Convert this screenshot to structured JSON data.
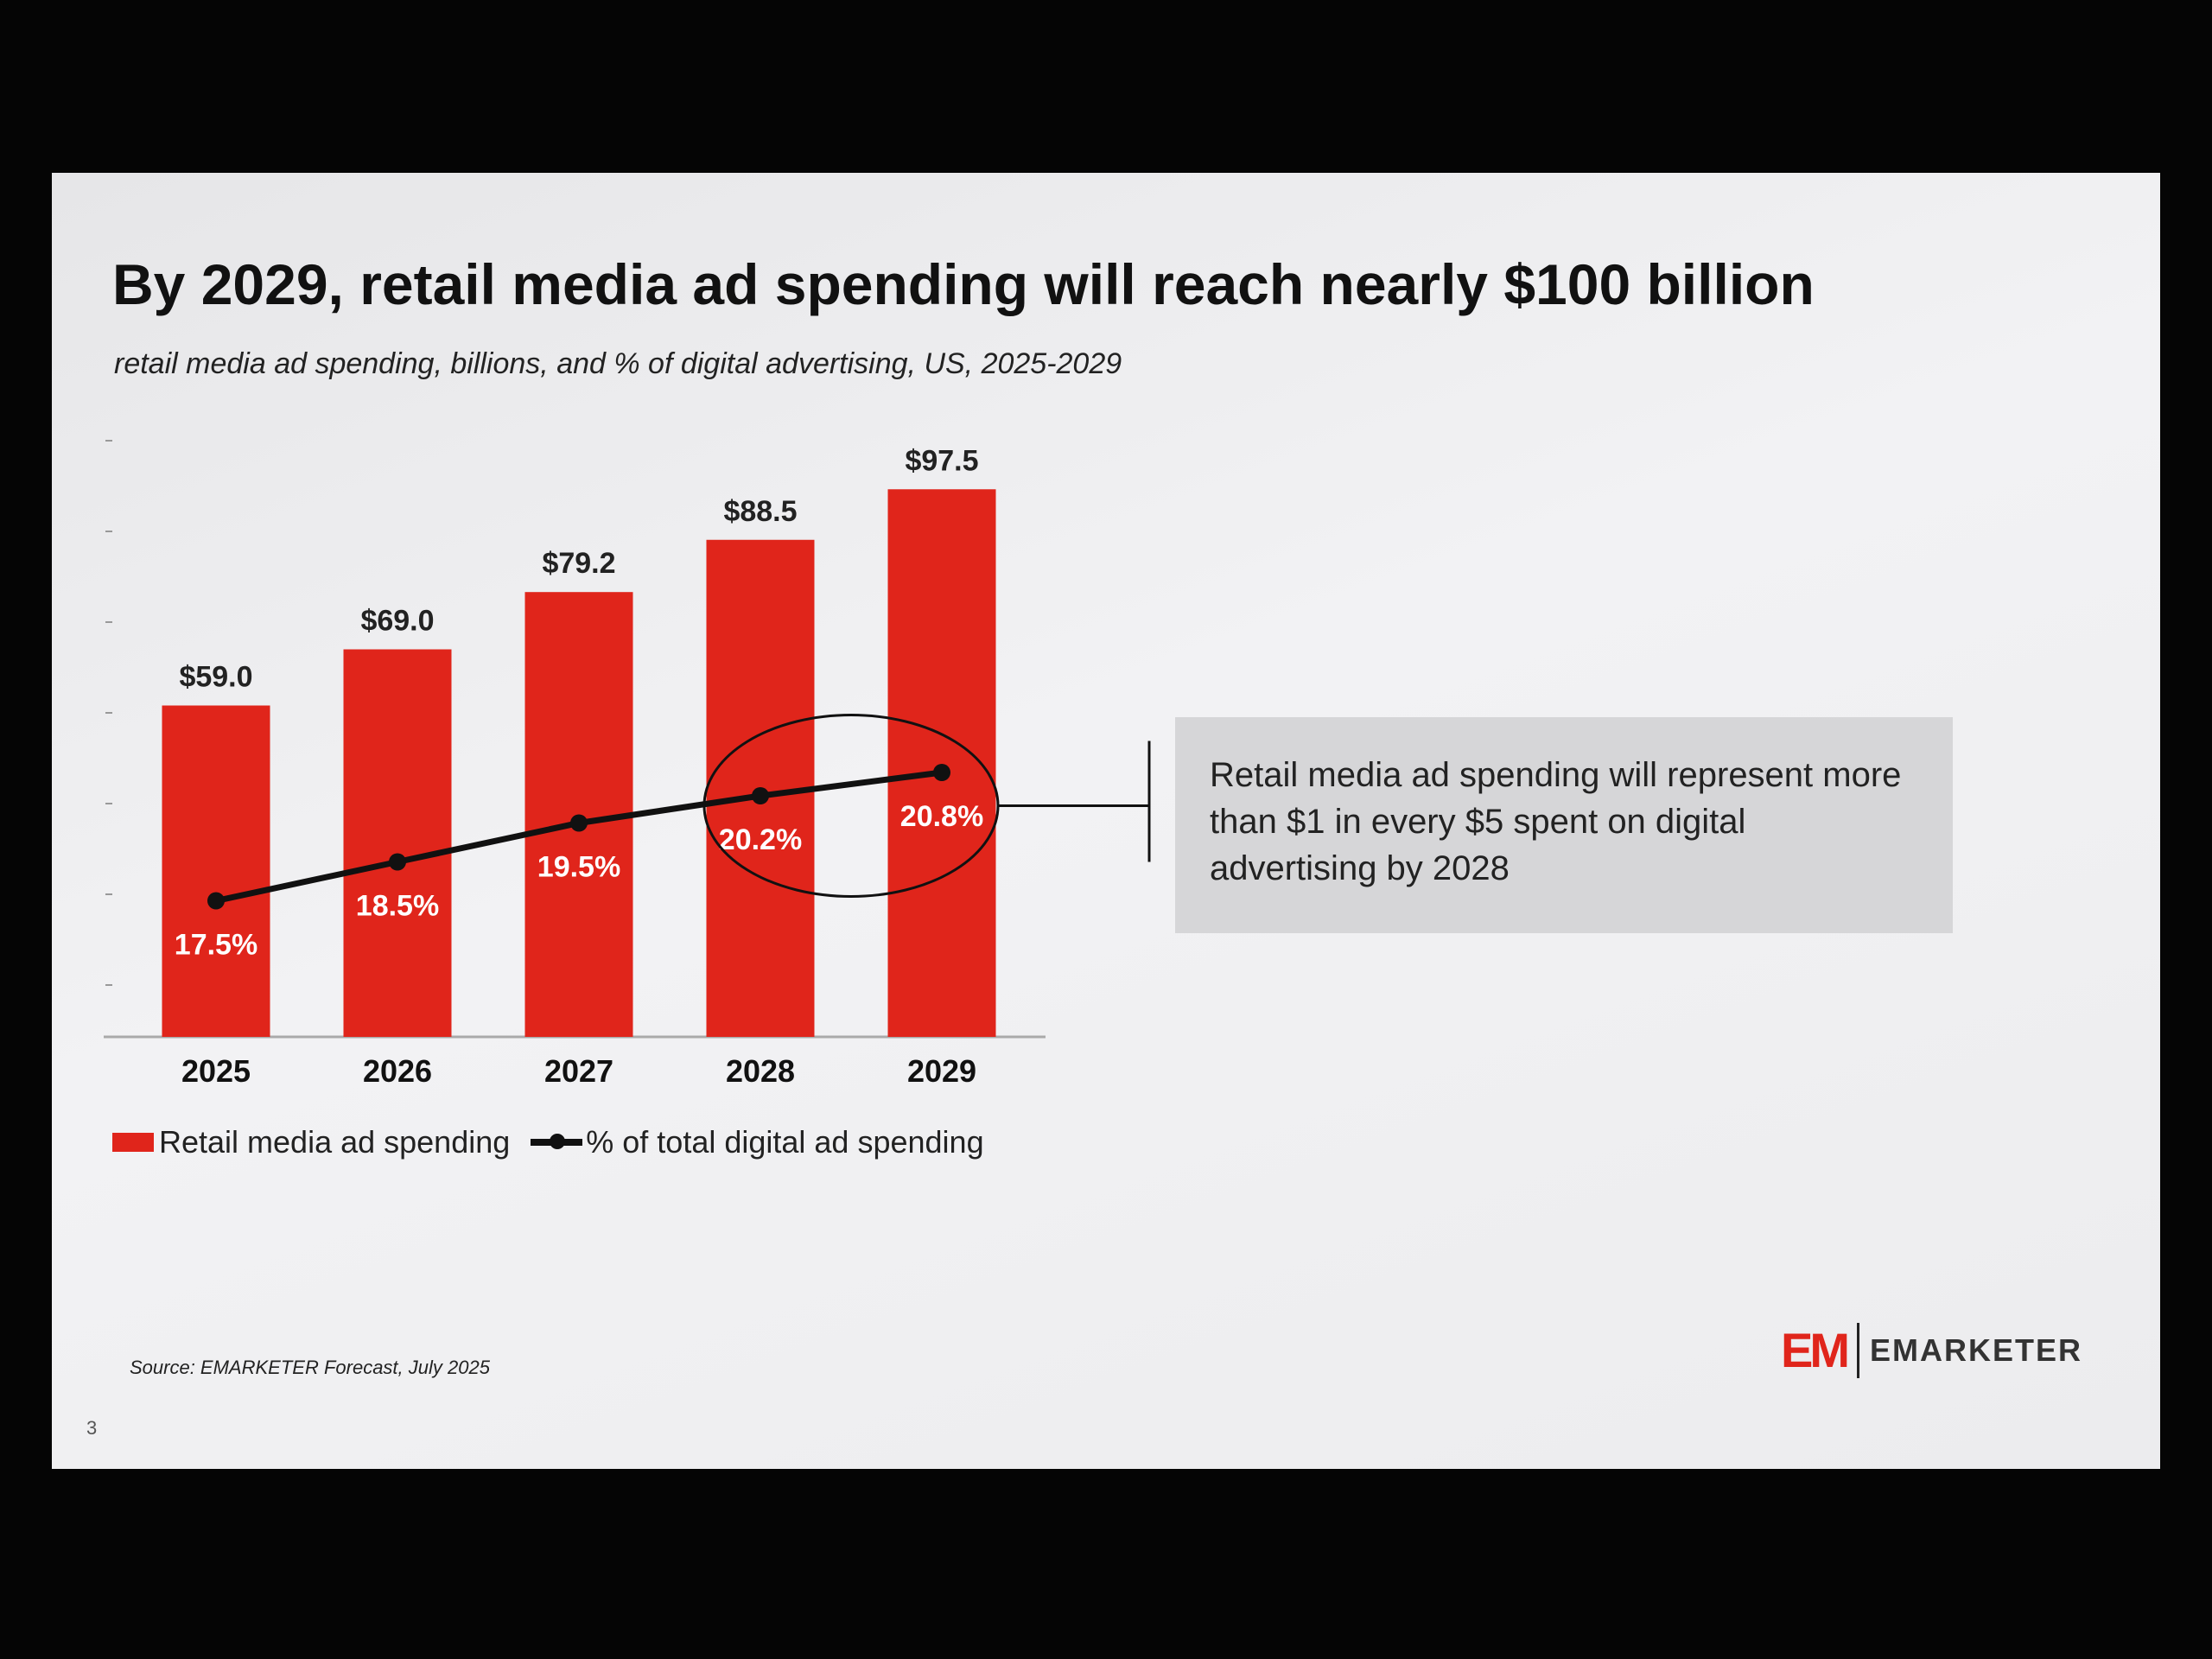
{
  "slide": {
    "title": "By 2029, retail media ad spending will reach nearly $100 billion",
    "subtitle": "retail media ad spending, billions, and % of digital advertising, US, 2025-2029",
    "callout": "Retail media ad spending will represent more than $1 in every $5 spent on digital advertising by 2028",
    "source": "Source: EMARKETER Forecast, July 2025",
    "page_number": "3",
    "logo_mark": "EM",
    "logo_text": "EMARKETER"
  },
  "chart_data": {
    "type": "bar",
    "title": "By 2029, retail media ad spending will reach nearly $100 billion",
    "subtitle": "retail media ad spending, billions, and % of digital advertising, US, 2025-2029",
    "categories": [
      "2025",
      "2026",
      "2027",
      "2028",
      "2029"
    ],
    "series": [
      {
        "name": "Retail media ad spending",
        "type": "bar",
        "values": [
          59.0,
          69.0,
          79.2,
          88.5,
          97.5
        ],
        "labels": [
          "$59.0",
          "$69.0",
          "$79.2",
          "$88.5",
          "$97.5"
        ],
        "color": "#e0251b"
      },
      {
        "name": "% of total digital ad spending",
        "type": "line",
        "values": [
          17.5,
          18.5,
          19.5,
          20.2,
          20.8
        ],
        "labels": [
          "17.5%",
          "18.5%",
          "19.5%",
          "20.2%",
          "20.8%"
        ],
        "color": "#111111"
      }
    ],
    "highlight": [
      "2028",
      "2029"
    ],
    "legend": "bottom",
    "grid": false
  }
}
